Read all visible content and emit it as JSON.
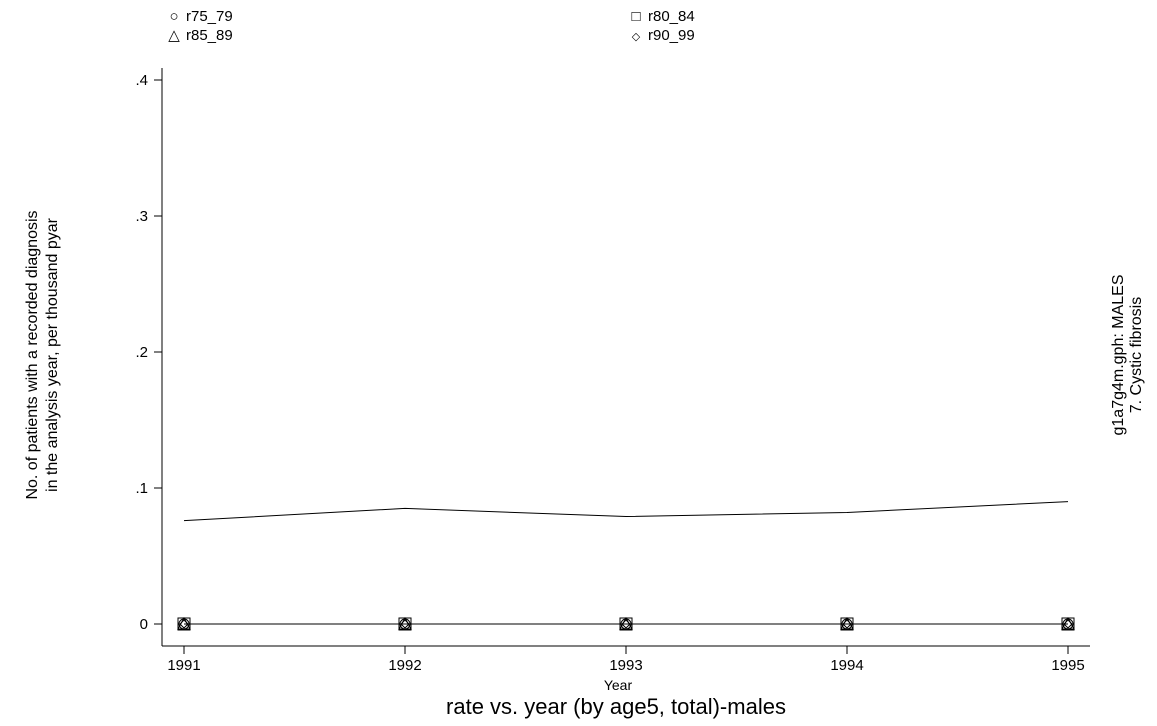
{
  "chart_data": {
    "type": "line",
    "x": [
      1991,
      1992,
      1993,
      1994,
      1995
    ],
    "x_tick_labels": [
      "1991",
      "1992",
      "1993",
      "1994",
      "1995"
    ],
    "y_tick_values": [
      0,
      0.1,
      0.2,
      0.3,
      0.4
    ],
    "y_tick_labels": [
      "0",
      ".1",
      ".2",
      ".3",
      ".4"
    ],
    "ylim": [
      0,
      0.4
    ],
    "xlim": [
      1991,
      1995
    ],
    "xlabel": "Year",
    "ylabel_line1": "No. of patients with a recorded diagnosis",
    "ylabel_line2": "in the analysis year, per thousand pyar",
    "right_label_line1": "g1a7g4m.gph: MALES",
    "right_label_line2": "7.  Cystic fibrosis",
    "caption": "rate vs. year (by age5, total)-males",
    "grid": false,
    "legend_position": "top",
    "series": [
      {
        "name": "r75_79",
        "marker": "circle",
        "values": [
          0,
          0,
          0,
          0,
          0
        ]
      },
      {
        "name": "r80_84",
        "marker": "square",
        "values": [
          0,
          0,
          0,
          0,
          0
        ]
      },
      {
        "name": "r85_89",
        "marker": "triangle",
        "values": [
          0,
          0,
          0,
          0,
          0
        ]
      },
      {
        "name": "r90_99",
        "marker": "diamond",
        "values": [
          0,
          0,
          0,
          0,
          0
        ]
      },
      {
        "marker": "none",
        "values": [
          0.076,
          0.085,
          0.079,
          0.082,
          0.09
        ]
      }
    ]
  }
}
